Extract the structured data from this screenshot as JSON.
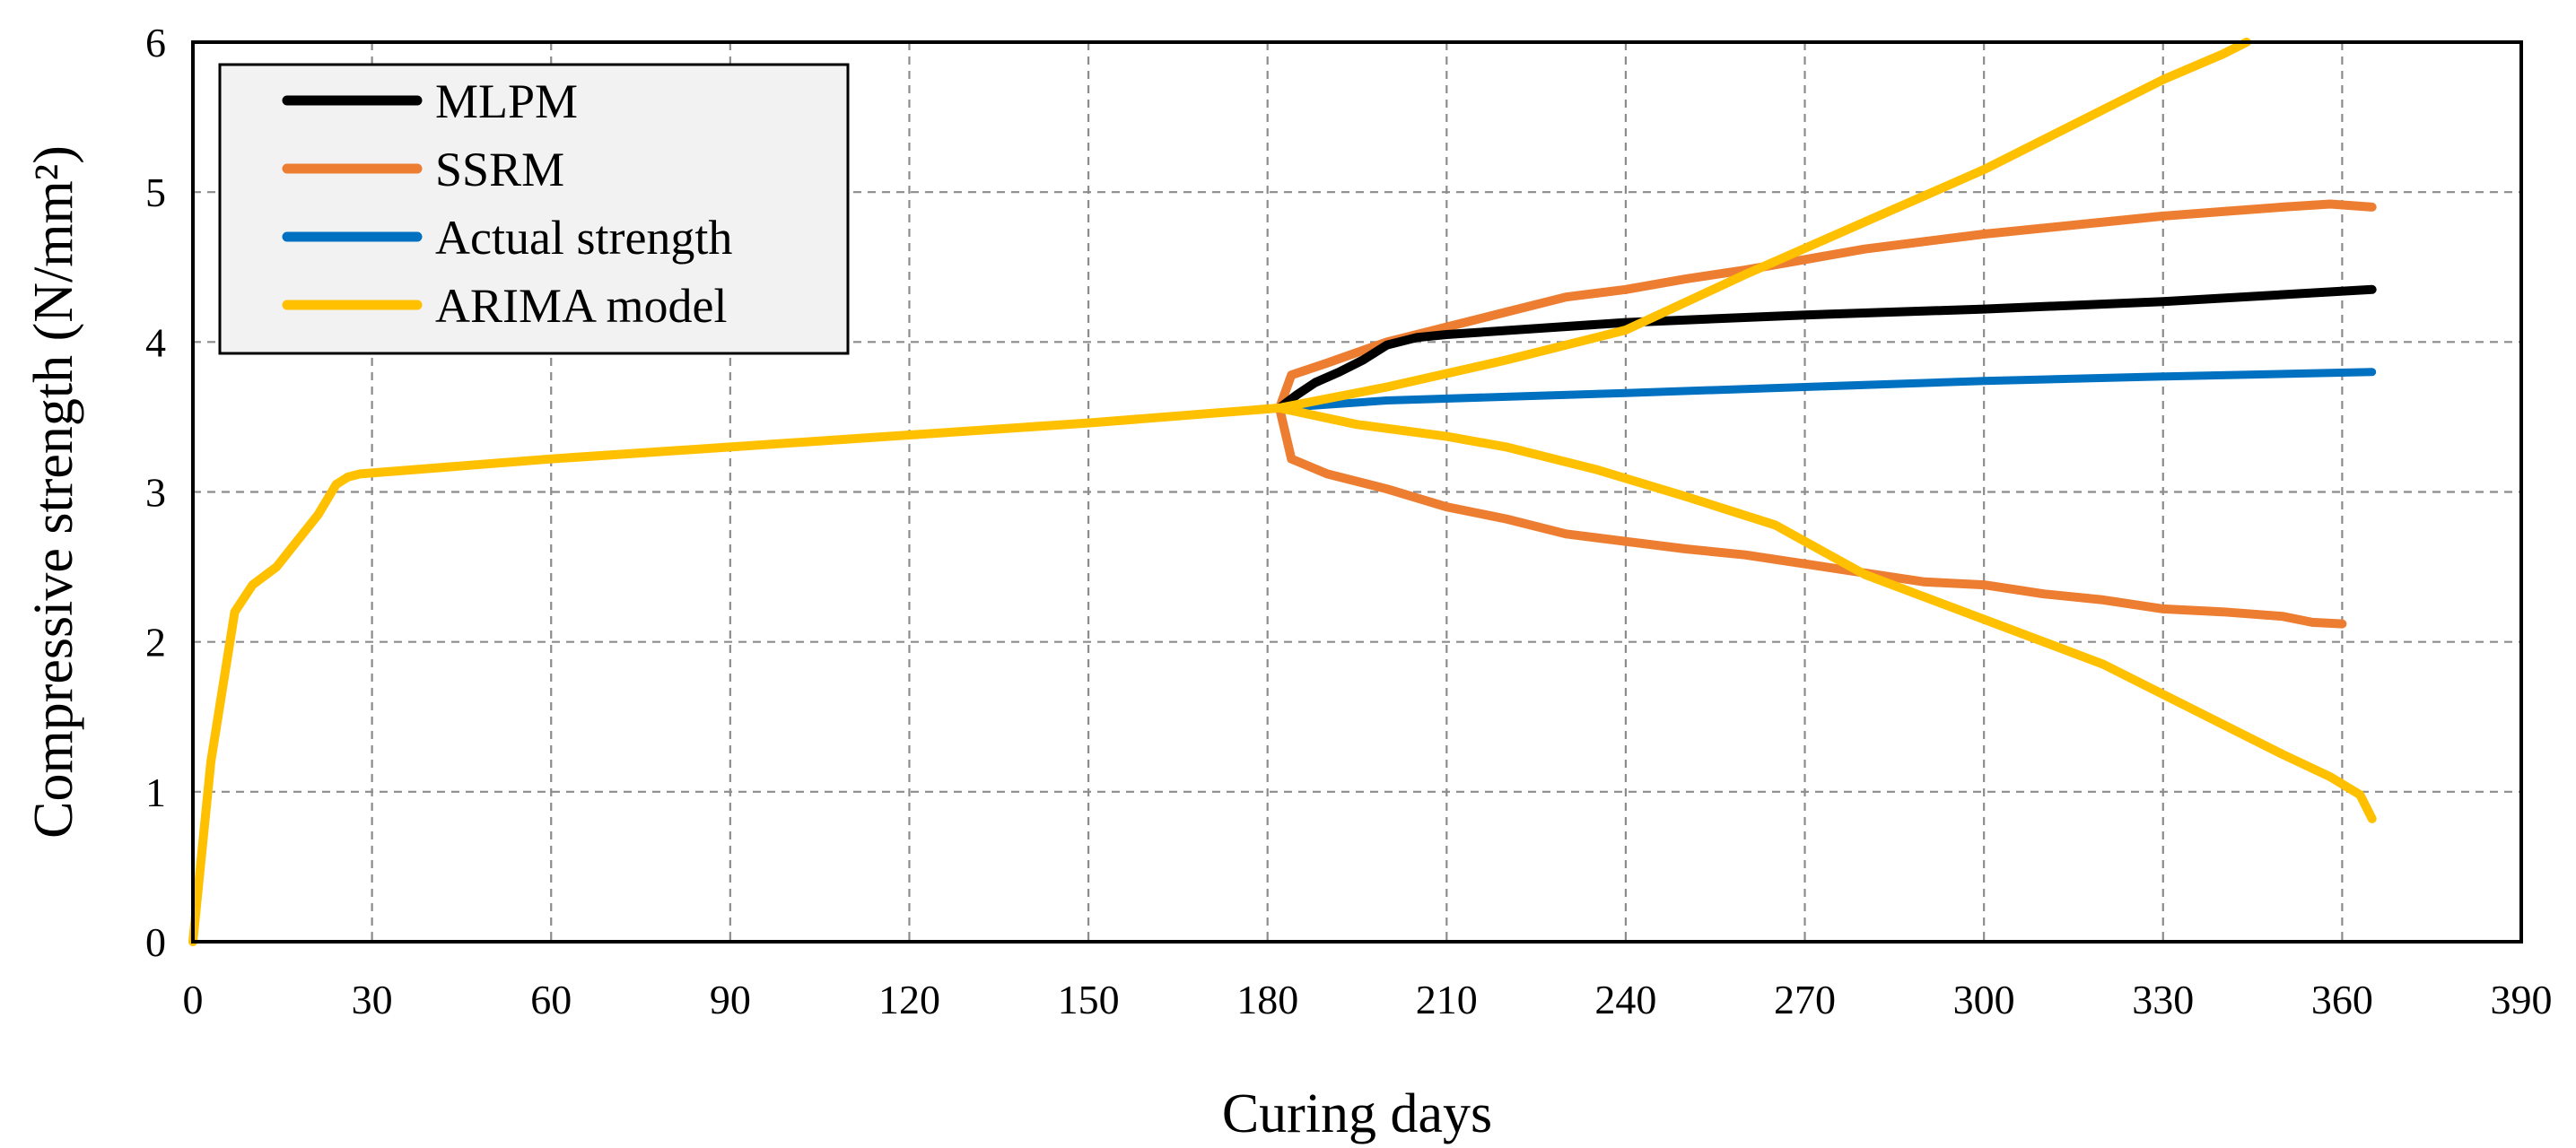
{
  "chart_data": {
    "type": "line",
    "title": "",
    "xlabel": "Curing days",
    "ylabel": "Compressive strength (N/mm²)",
    "xlim": [
      0,
      390
    ],
    "ylim": [
      0,
      6
    ],
    "xticks": [
      0,
      30,
      60,
      90,
      120,
      150,
      180,
      210,
      240,
      270,
      300,
      330,
      360,
      390
    ],
    "yticks": [
      0,
      1,
      2,
      3,
      4,
      5,
      6
    ],
    "grid": true,
    "legend_position": "top-left",
    "colors": {
      "MLPM": "#000000",
      "SSRM": "#ed7d31",
      "Actual strength": "#0070c0",
      "ARIMA model": "#ffc000",
      "grid": "#8c8c8c"
    },
    "series": [
      {
        "name": "Actual strength",
        "x": [
          0,
          3,
          7,
          10,
          14,
          18,
          21,
          24,
          26,
          28,
          60,
          90,
          120,
          150,
          182,
          200,
          240,
          270,
          300,
          330,
          365
        ],
        "y": [
          0,
          1.2,
          2.2,
          2.38,
          2.5,
          2.7,
          2.85,
          3.05,
          3.1,
          3.12,
          3.22,
          3.3,
          3.38,
          3.46,
          3.56,
          3.61,
          3.66,
          3.7,
          3.74,
          3.77,
          3.8
        ]
      },
      {
        "name": "MLPM",
        "x": [
          182,
          185,
          188,
          192,
          196,
          200,
          205,
          210,
          240,
          270,
          300,
          330,
          365
        ],
        "y": [
          3.56,
          3.65,
          3.73,
          3.8,
          3.88,
          3.98,
          4.03,
          4.05,
          4.13,
          4.18,
          4.22,
          4.27,
          4.35
        ]
      },
      {
        "name": "SSRM",
        "x": [
          182,
          184,
          190,
          200,
          210,
          220,
          230,
          240,
          250,
          260,
          270,
          280,
          290,
          300,
          310,
          320,
          330,
          340,
          350,
          358,
          365
        ],
        "y": [
          3.56,
          3.78,
          3.86,
          4.0,
          4.1,
          4.2,
          4.3,
          4.35,
          4.42,
          4.48,
          4.55,
          4.62,
          4.67,
          4.72,
          4.76,
          4.8,
          4.84,
          4.87,
          4.9,
          4.92,
          4.9
        ]
      },
      {
        "name": "SSRM lower",
        "x": [
          182,
          184,
          190,
          200,
          210,
          220,
          230,
          240,
          250,
          260,
          270,
          280,
          290,
          300,
          310,
          320,
          330,
          340,
          350,
          355,
          360
        ],
        "y": [
          3.56,
          3.22,
          3.12,
          3.02,
          2.9,
          2.82,
          2.72,
          2.67,
          2.62,
          2.58,
          2.52,
          2.46,
          2.4,
          2.38,
          2.32,
          2.28,
          2.22,
          2.2,
          2.17,
          2.13,
          2.12
        ]
      },
      {
        "name": "ARIMA model",
        "x": [
          0,
          3,
          7,
          10,
          14,
          18,
          21,
          24,
          26,
          28,
          60,
          90,
          120,
          150,
          182,
          200,
          220,
          240,
          260,
          280,
          300,
          320,
          330,
          340,
          344
        ],
        "y": [
          0,
          1.2,
          2.2,
          2.38,
          2.5,
          2.7,
          2.85,
          3.05,
          3.1,
          3.12,
          3.22,
          3.3,
          3.38,
          3.46,
          3.56,
          3.7,
          3.88,
          4.08,
          4.45,
          4.8,
          5.15,
          5.55,
          5.75,
          5.92,
          6.0
        ]
      },
      {
        "name": "ARIMA lower",
        "x": [
          182,
          195,
          210,
          220,
          235,
          250,
          265,
          280,
          300,
          320,
          330,
          340,
          350,
          358,
          363,
          365
        ],
        "y": [
          3.56,
          3.45,
          3.37,
          3.3,
          3.15,
          2.97,
          2.78,
          2.45,
          2.15,
          1.85,
          1.65,
          1.45,
          1.25,
          1.1,
          0.98,
          0.82
        ]
      }
    ],
    "legend": [
      "MLPM",
      "SSRM",
      "Actual strength",
      "ARIMA model"
    ]
  }
}
